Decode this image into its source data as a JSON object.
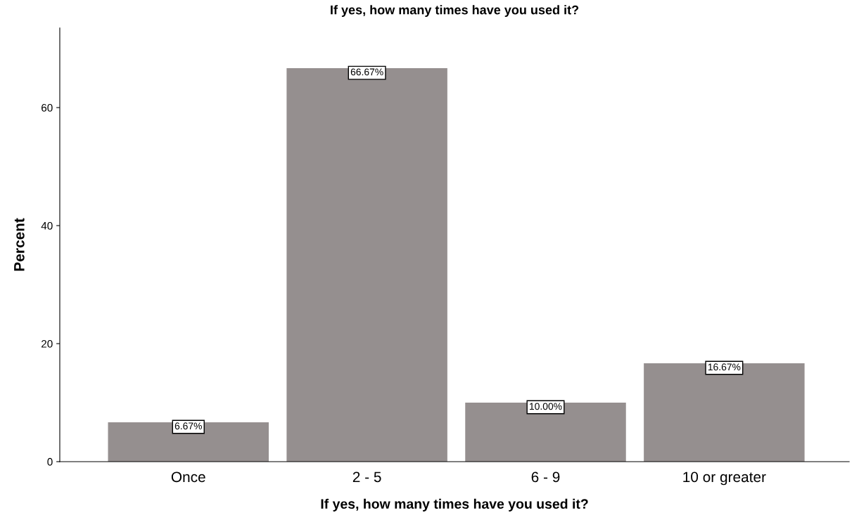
{
  "chart_data": {
    "type": "bar",
    "title": "If yes, how many times have you used it?",
    "xlabel": "If yes, how many times have you used it?",
    "ylabel": "Percent",
    "categories": [
      "Once",
      "2 - 5",
      "6 - 9",
      "10 or greater"
    ],
    "values": [
      6.67,
      66.67,
      10.0,
      16.67
    ],
    "value_labels": [
      "6.67%",
      "66.67%",
      "10.00%",
      "16.67%"
    ],
    "color": "#958f8f",
    "ylim": [
      0,
      73.5
    ],
    "yticks": [
      0,
      20,
      40,
      60
    ],
    "grid": false,
    "legend": false
  }
}
